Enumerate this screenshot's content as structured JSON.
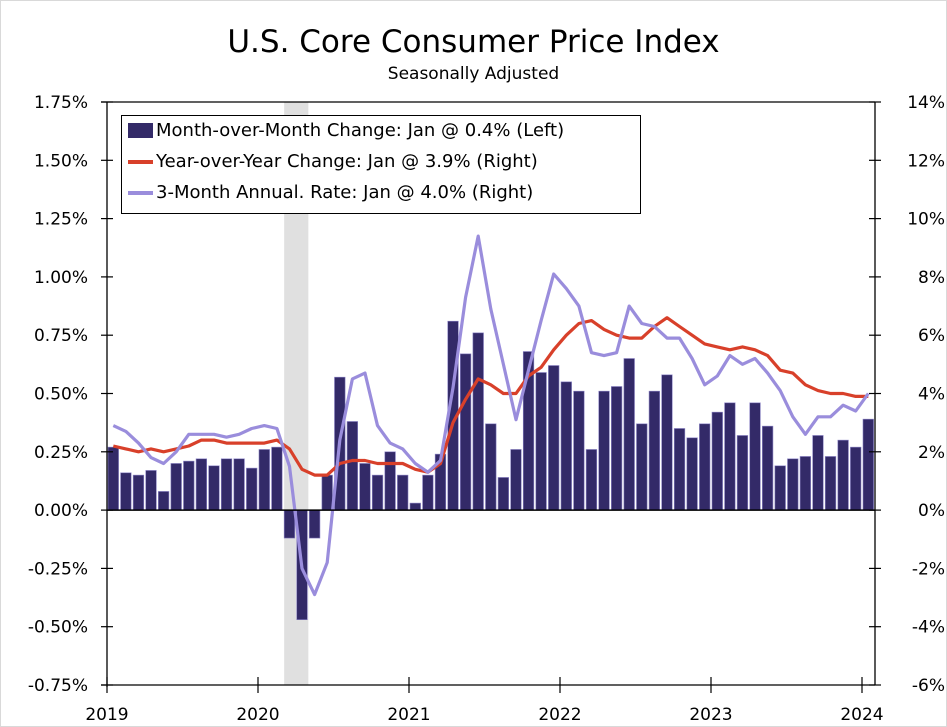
{
  "chart_data": {
    "type": "bar",
    "title": "U.S. Core Consumer Price Index",
    "subtitle": "Seasonally Adjusted",
    "xlabel": "",
    "ylabel_left": "",
    "ylabel_right": "",
    "ylim_left": [
      -0.75,
      1.75
    ],
    "ylim_right": [
      -6,
      14
    ],
    "yticks_left": [
      "1.75%",
      "1.50%",
      "1.25%",
      "1.00%",
      "0.75%",
      "0.50%",
      "0.25%",
      "0.00%",
      "-0.25%",
      "-0.50%",
      "-0.75%"
    ],
    "yticks_left_values": [
      1.75,
      1.5,
      1.25,
      1.0,
      0.75,
      0.5,
      0.25,
      0.0,
      -0.25,
      -0.5,
      -0.75
    ],
    "yticks_right": [
      "14%",
      "12%",
      "10%",
      "8%",
      "6%",
      "4%",
      "2%",
      "0%",
      "-2%",
      "-4%",
      "-6%"
    ],
    "yticks_right_values": [
      14,
      12,
      10,
      8,
      6,
      4,
      2,
      0,
      -2,
      -4,
      -6
    ],
    "xticks": [
      "2019",
      "2020",
      "2021",
      "2022",
      "2023",
      "2024"
    ],
    "x_start": "2019-01",
    "x_end": "2024-01",
    "grid": false,
    "legend_position": "top-left",
    "recession_shading": {
      "start": "2020-03",
      "end": "2020-04",
      "color": "#e0e0e0"
    },
    "series": [
      {
        "name": "Month-over-Month Change: Jan @ 0.4% (Left)",
        "type": "bar",
        "axis": "left",
        "color": "#332a68",
        "values": [
          0.27,
          0.16,
          0.15,
          0.17,
          0.08,
          0.2,
          0.21,
          0.22,
          0.19,
          0.22,
          0.22,
          0.18,
          0.26,
          0.27,
          -0.12,
          -0.47,
          -0.12,
          0.15,
          0.57,
          0.38,
          0.2,
          0.15,
          0.25,
          0.15,
          0.03,
          0.15,
          0.24,
          0.81,
          0.67,
          0.76,
          0.37,
          0.14,
          0.26,
          0.68,
          0.59,
          0.62,
          0.55,
          0.51,
          0.26,
          0.51,
          0.53,
          0.65,
          0.37,
          0.51,
          0.58,
          0.35,
          0.31,
          0.37,
          0.42,
          0.46,
          0.32,
          0.46,
          0.36,
          0.19,
          0.22,
          0.23,
          0.32,
          0.23,
          0.3,
          0.27,
          0.39
        ]
      },
      {
        "name": "Year-over-Year Change: Jan @ 3.9% (Right)",
        "type": "line",
        "axis": "right",
        "color": "#d8402a",
        "values": [
          2.2,
          2.1,
          2.0,
          2.1,
          2.0,
          2.1,
          2.2,
          2.4,
          2.4,
          2.3,
          2.3,
          2.3,
          2.3,
          2.4,
          2.1,
          1.4,
          1.2,
          1.2,
          1.6,
          1.7,
          1.7,
          1.6,
          1.6,
          1.6,
          1.4,
          1.3,
          1.6,
          3.0,
          3.8,
          4.5,
          4.3,
          4.0,
          4.0,
          4.6,
          4.9,
          5.5,
          6.0,
          6.4,
          6.5,
          6.2,
          6.0,
          5.9,
          5.9,
          6.3,
          6.6,
          6.3,
          6.0,
          5.7,
          5.6,
          5.5,
          5.6,
          5.5,
          5.3,
          4.8,
          4.7,
          4.3,
          4.1,
          4.0,
          4.0,
          3.9,
          3.9
        ]
      },
      {
        "name": "3-Month Annual. Rate: Jan @ 4.0% (Right)",
        "type": "line",
        "axis": "right",
        "color": "#9a8ddc",
        "values": [
          2.9,
          2.7,
          2.3,
          1.8,
          1.6,
          2.0,
          2.6,
          2.6,
          2.6,
          2.5,
          2.6,
          2.8,
          2.9,
          2.8,
          1.5,
          -2.0,
          -2.9,
          -1.8,
          2.4,
          4.5,
          4.7,
          2.9,
          2.3,
          2.1,
          1.6,
          1.3,
          1.7,
          4.2,
          7.3,
          9.4,
          6.9,
          5.0,
          3.1,
          4.8,
          6.5,
          8.1,
          7.6,
          7.0,
          5.4,
          5.3,
          5.4,
          7.0,
          6.4,
          6.3,
          5.9,
          5.9,
          5.2,
          4.3,
          4.6,
          5.3,
          5.0,
          5.2,
          4.7,
          4.1,
          3.2,
          2.6,
          3.2,
          3.2,
          3.6,
          3.4,
          4.0
        ]
      }
    ]
  },
  "legend": {
    "items": [
      "Month-over-Month Change: Jan @ 0.4% (Left)",
      "Year-over-Year Change: Jan @ 3.9% (Right)",
      "3-Month Annual. Rate: Jan @ 4.0% (Right)"
    ],
    "colors": [
      "#332a68",
      "#d8402a",
      "#9a8ddc"
    ]
  }
}
